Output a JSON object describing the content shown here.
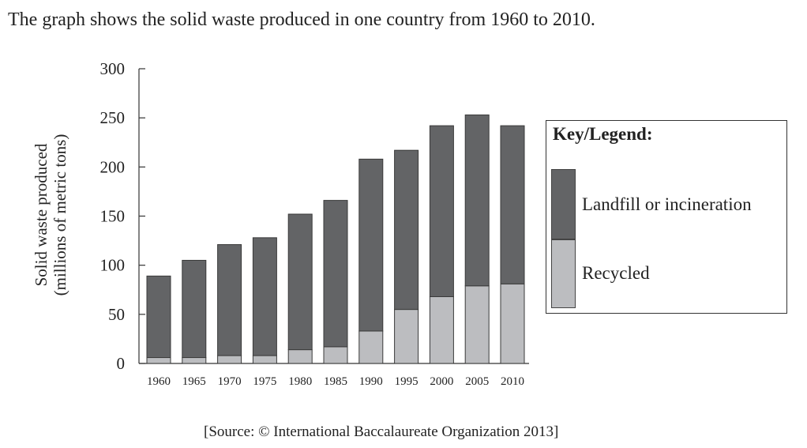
{
  "heading": "The graph shows the solid waste produced in one country from 1960 to 2010.",
  "source": "[Source: © International Baccalaureate Organization 2013]",
  "chart_data": {
    "type": "bar",
    "stacked": true,
    "title": "",
    "xlabel": "",
    "ylabel": [
      "Solid waste produced",
      "(millions of metric tons)"
    ],
    "ylim": [
      0,
      300
    ],
    "yticks": [
      0,
      50,
      100,
      150,
      200,
      250,
      300
    ],
    "categories": [
      "1960",
      "1965",
      "1970",
      "1975",
      "1980",
      "1985",
      "1990",
      "1995",
      "2000",
      "2005",
      "2010"
    ],
    "series": [
      {
        "name": "Recycled",
        "color": "#bcbdc0",
        "values": [
          6,
          6,
          8,
          8,
          14,
          17,
          33,
          55,
          68,
          79,
          81
        ]
      },
      {
        "name": "Landfill or incineration",
        "color": "#636466",
        "values": [
          83,
          99,
          113,
          120,
          138,
          149,
          175,
          162,
          174,
          174,
          161
        ]
      }
    ],
    "totals": [
      89,
      105,
      121,
      128,
      152,
      166,
      208,
      217,
      242,
      253,
      242
    ],
    "legend": {
      "title": "Key/Legend:",
      "placement": "right"
    },
    "grid": false
  }
}
